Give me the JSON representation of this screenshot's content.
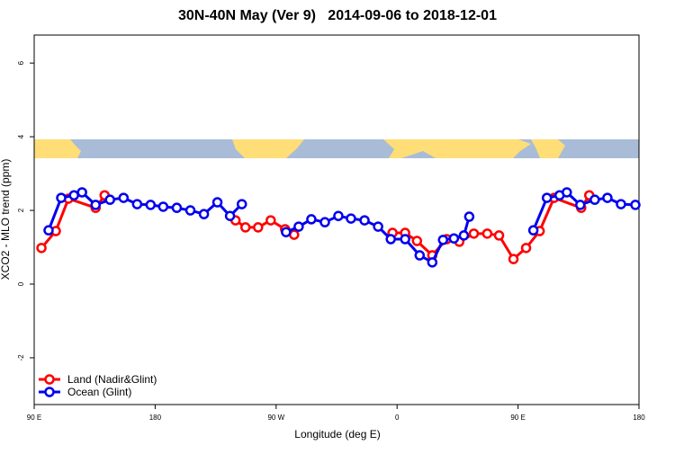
{
  "chart_data": {
    "type": "line",
    "title": "30N-40N May (Ver 9)   2014-09-06 to 2018-12-01",
    "x_label": "Longitude (deg E)",
    "y_label": "XCO2 - MLO trend (ppm)",
    "xlim": [
      90,
      540
    ],
    "ylim": [
      -3.27,
      6.76
    ],
    "xticks": [
      {
        "value": 90,
        "label": "90 E"
      },
      180,
      {
        "value": 270,
        "label": "90 W"
      },
      {
        "value": 360,
        "label": "0"
      },
      {
        "value": 450,
        "label": "90 E"
      },
      {
        "value": 540,
        "label": "180"
      }
    ],
    "yticks": [
      -2,
      0,
      2,
      4,
      6
    ],
    "legend": "bottom-left",
    "series": [
      {
        "name": "Land (Nadir&Glint)",
        "color": "#ff0000",
        "x": [
          95.4,
          106.1,
          115.5,
          135.7,
          142.4,
          null,
          239.8,
          247.2,
          256.6,
          266.0,
          276.7,
          283.4,
          null,
          356.6,
          366.0,
          374.8,
          386.2,
          396.9,
          406.3,
          417.1,
          427.1,
          435.9,
          446.6,
          456.0,
          466.1,
          476.8,
          497.0,
          503.0
        ],
        "values": [
          0.98,
          1.44,
          2.32,
          2.07,
          2.41,
          null,
          1.73,
          1.54,
          1.54,
          1.73,
          1.49,
          1.34,
          null,
          1.39,
          1.39,
          1.17,
          0.78,
          1.22,
          1.15,
          1.37,
          1.37,
          1.32,
          0.68,
          0.98,
          1.44,
          2.34,
          2.07,
          2.41
        ]
      },
      {
        "name": "Ocean (Glint)",
        "color": "#0000ee",
        "x": [
          100.7,
          110.1,
          119.6,
          125.6,
          135.7,
          146.4,
          156.5,
          166.6,
          176.6,
          186.0,
          196.1,
          206.2,
          216.3,
          226.3,
          235.7,
          244.5,
          null,
          277.4,
          286.8,
          296.2,
          306.3,
          316.3,
          325.7,
          335.8,
          345.9,
          355.3,
          366.0,
          376.8,
          386.2,
          394.2,
          402.3,
          409.7,
          413.7,
          null,
          461.4,
          471.5,
          480.9,
          486.3,
          496.3,
          507.1,
          516.5,
          526.6,
          537.3
        ],
        "values": [
          1.46,
          2.34,
          2.41,
          2.49,
          2.15,
          2.29,
          2.34,
          2.17,
          2.15,
          2.1,
          2.07,
          2.0,
          1.9,
          2.22,
          1.85,
          2.17,
          null,
          1.41,
          1.56,
          1.76,
          1.68,
          1.85,
          1.78,
          1.73,
          1.56,
          1.22,
          1.22,
          0.78,
          0.59,
          1.2,
          1.24,
          1.32,
          1.83,
          null,
          1.46,
          2.34,
          2.41,
          2.49,
          2.15,
          2.29,
          2.34,
          2.17,
          2.15
        ]
      }
    ]
  }
}
